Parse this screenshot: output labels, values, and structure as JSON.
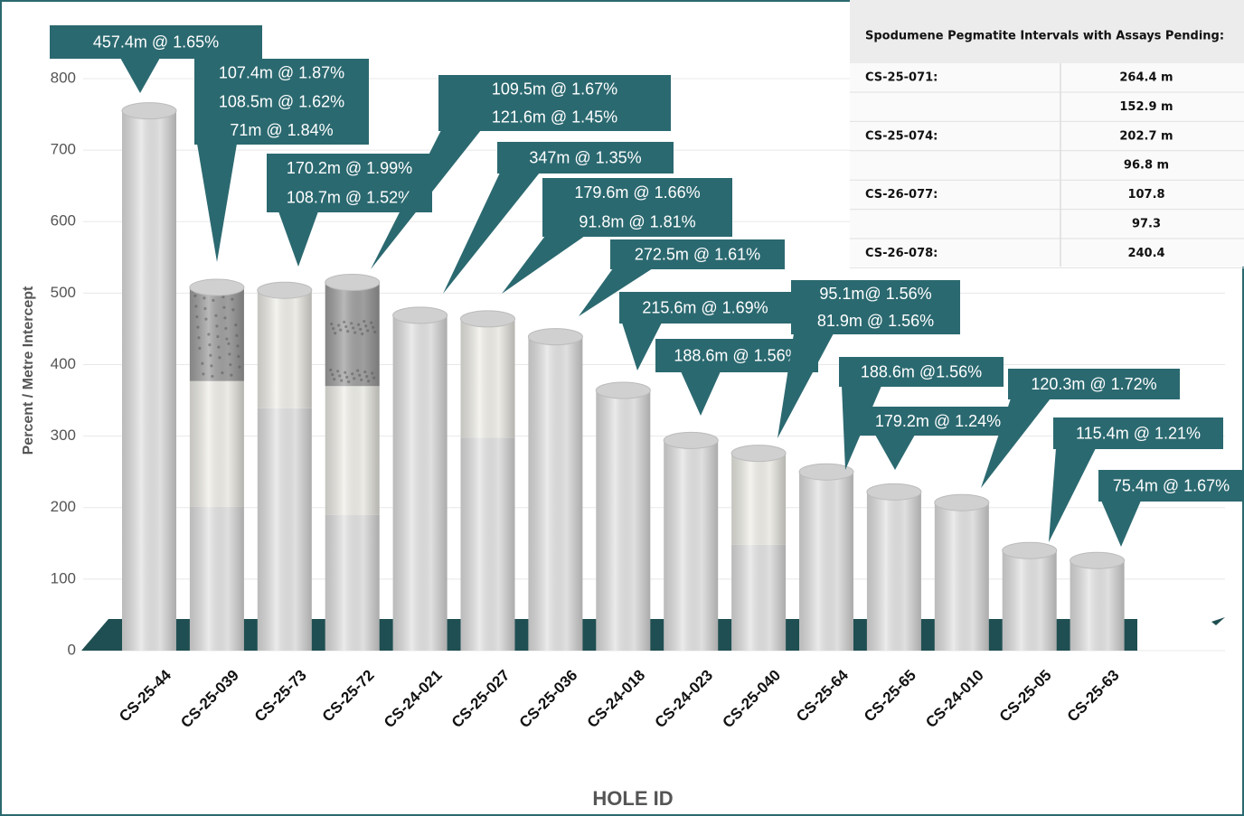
{
  "chart_data": {
    "type": "bar",
    "stacked": true,
    "y_label": "Percent / Metre Intercept",
    "x_label": "HOLE ID",
    "categories": [
      "CS-25-44",
      "CS-25-039",
      "CS-25-73",
      "CS-25-72",
      "CS-24-021",
      "CS-25-027",
      "CS-25-036",
      "CS-24-018",
      "CS-24-023",
      "CS-25-040",
      "CS-25-64",
      "CS-25-65",
      "CS-24-010",
      "CS-25-05",
      "CS-25-63"
    ],
    "series": [
      {
        "color": "#e4e4e4",
        "values": [
          755,
          201,
          339,
          190,
          469,
          298,
          439,
          364,
          294,
          148,
          250,
          222,
          207,
          140,
          126
        ]
      },
      {
        "color": "#f1f0ea",
        "values": [
          null,
          176,
          165,
          180,
          null,
          166,
          null,
          null,
          null,
          128,
          null,
          null,
          null,
          null,
          null
        ]
      },
      {
        "color": "#a2a2a2",
        "values": [
          null,
          131,
          null,
          145,
          null,
          null,
          null,
          null,
          null,
          null,
          null,
          null,
          null,
          null,
          null
        ]
      }
    ],
    "ylim": [
      0,
      800
    ],
    "yticks": [
      0,
      100,
      200,
      300,
      400,
      500,
      600,
      700,
      800
    ],
    "grid": true,
    "annotation_color": "#2b6970",
    "annotations": [
      [
        "457.4m @ 1.65%"
      ],
      [
        "107.4m @ 1.87%",
        "108.5m @ 1.62%",
        "71m @ 1.84%"
      ],
      [
        "170.2m @ 1.99%",
        "108.7m @ 1.52%"
      ],
      [
        "109.5m @ 1.67%",
        "121.6m @ 1.45%"
      ],
      [
        "347m @ 1.35%"
      ],
      [
        "179.6m @ 1.66%",
        "91.8m @ 1.81%"
      ],
      [
        "272.5m @ 1.61%"
      ],
      [
        "215.6m @ 1.69%"
      ],
      [
        "188.6m @ 1.56%"
      ],
      [
        "95.1m@ 1.56%",
        "81.9m @ 1.56%"
      ],
      [
        "188.6m @1.56%"
      ],
      [
        "179.2m @ 1.24%"
      ],
      [
        "120.3m @ 1.72%"
      ],
      [
        "115.4m @ 1.21%"
      ],
      [
        "75.4m @ 1.67%"
      ]
    ]
  },
  "table": {
    "title": "Spodumene Pegmatite Intervals with Assays Pending:",
    "rows": [
      {
        "hole": "CS-25-071:",
        "length": "264.4 m"
      },
      {
        "length": "152.9 m"
      },
      {
        "hole": "CS-25-074:",
        "length": "202.7 m"
      },
      {
        "length": "96.8 m"
      },
      {
        "hole": "CS-26-077:",
        "length": "107.8"
      },
      {
        "length": "97.3"
      },
      {
        "hole": "CS-26-078:",
        "length": "240.4"
      }
    ]
  }
}
